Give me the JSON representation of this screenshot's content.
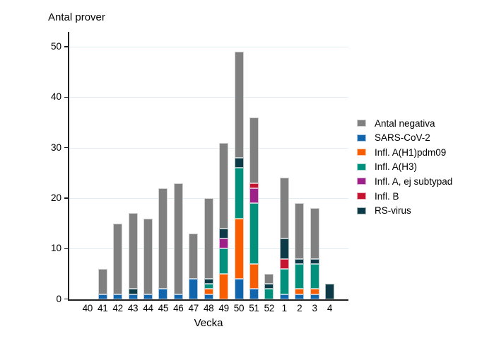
{
  "chart_data": {
    "type": "bar",
    "stacked": true,
    "title": "Antal prover",
    "xlabel": "Vecka",
    "ylabel": "",
    "ylim": [
      0,
      50
    ],
    "yticks": [
      0,
      10,
      20,
      30,
      40,
      50
    ],
    "grid": true,
    "legend_position": "right",
    "categories": [
      "40",
      "41",
      "42",
      "43",
      "44",
      "45",
      "46",
      "47",
      "48",
      "49",
      "50",
      "51",
      "52",
      "1",
      "2",
      "3",
      "4"
    ],
    "series": [
      {
        "name": "SARS-CoV-2",
        "color": "#1065ac",
        "values": [
          0,
          1,
          1,
          1,
          1,
          2,
          1,
          4,
          1,
          0,
          4,
          2,
          0,
          1,
          1,
          1,
          0
        ]
      },
      {
        "name": "Infl. A(H1)pdm09",
        "color": "#f95d02",
        "values": [
          0,
          0,
          0,
          0,
          0,
          0,
          0,
          0,
          1,
          5,
          12,
          5,
          0,
          0,
          1,
          1,
          0
        ]
      },
      {
        "name": "Infl. A(H3)",
        "color": "#00907c",
        "values": [
          0,
          0,
          0,
          0,
          0,
          0,
          0,
          0,
          1,
          5,
          10,
          12,
          2,
          5,
          5,
          5,
          0
        ]
      },
      {
        "name": "Infl. A, ej subtypad",
        "color": "#9e2089",
        "values": [
          0,
          0,
          0,
          0,
          0,
          0,
          0,
          0,
          0,
          2,
          0,
          3,
          0,
          0,
          0,
          0,
          0
        ]
      },
      {
        "name": "Infl. B",
        "color": "#c41430",
        "values": [
          0,
          0,
          0,
          0,
          0,
          0,
          0,
          0,
          0,
          0,
          0,
          1,
          0,
          2,
          0,
          0,
          0
        ]
      },
      {
        "name": "RS-virus",
        "color": "#0c3a47",
        "values": [
          0,
          0,
          0,
          1,
          0,
          0,
          0,
          0,
          1,
          2,
          2,
          0,
          1,
          4,
          1,
          1,
          3
        ]
      },
      {
        "name": "Antal negativa",
        "color": "#808080",
        "values": [
          0,
          5,
          14,
          15,
          15,
          20,
          22,
          9,
          16,
          17,
          21,
          13,
          2,
          12,
          11,
          10,
          0
        ]
      }
    ],
    "legend_order": [
      "Antal negativa",
      "SARS-CoV-2",
      "Infl. A(H1)pdm09",
      "Infl. A(H3)",
      "Infl. A, ej subtypad",
      "Infl. B",
      "RS-virus"
    ]
  }
}
